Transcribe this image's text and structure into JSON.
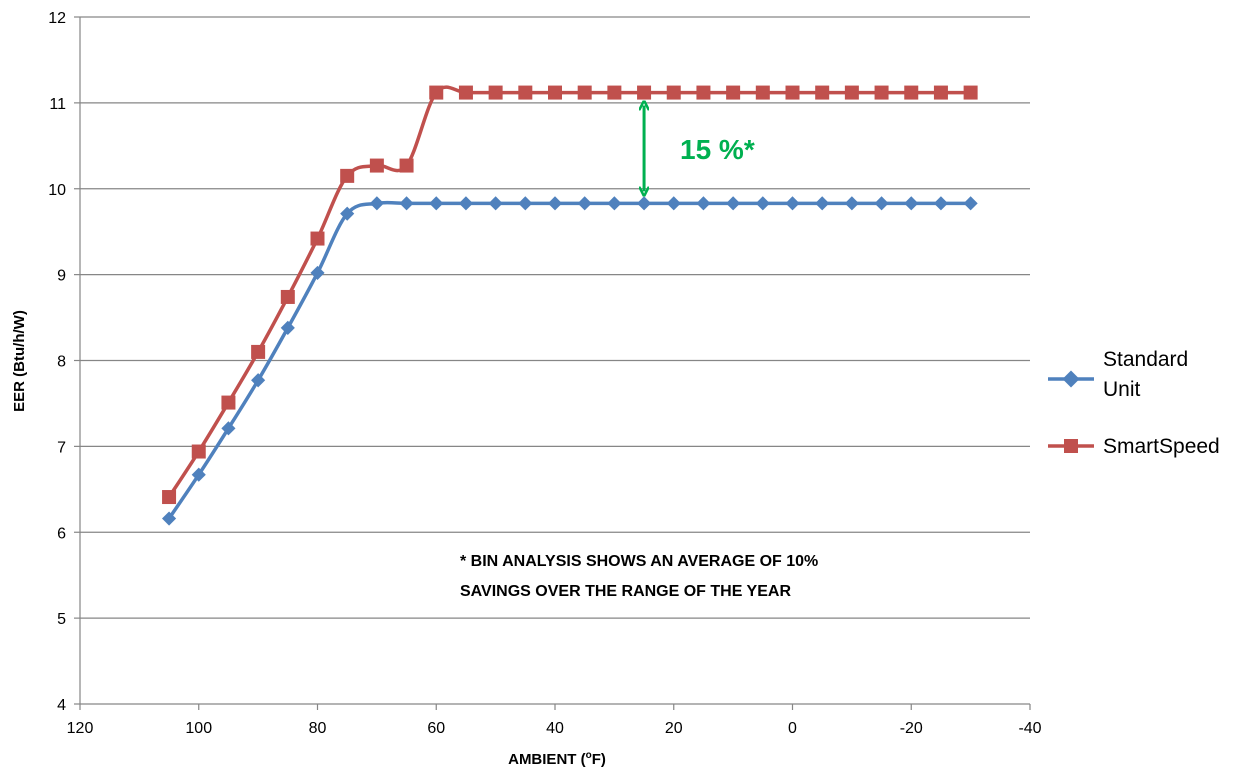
{
  "chart_data": {
    "type": "line",
    "title": "",
    "xlabel": "AMBIENT (ºF)",
    "xlabel_parts": [
      "AMBIENT (",
      "o",
      "F)"
    ],
    "ylabel": "EER (Btu/h/W)",
    "xlim": [
      120,
      -40
    ],
    "ylim": [
      4,
      12
    ],
    "x_ticks": [
      120,
      100,
      80,
      60,
      40,
      20,
      0,
      -20,
      -40
    ],
    "y_ticks": [
      4,
      5,
      6,
      7,
      8,
      9,
      10,
      11,
      12
    ],
    "grid": "horizontal",
    "legend_position": "right",
    "x": [
      105,
      100,
      95,
      90,
      85,
      80,
      75,
      70,
      65,
      60,
      55,
      50,
      45,
      40,
      35,
      30,
      25,
      20,
      15,
      10,
      5,
      0,
      -5,
      -10,
      -15,
      -20,
      -25,
      -30
    ],
    "series": [
      {
        "name": "Standard Unit",
        "legend_lines": [
          "Standard",
          "Unit"
        ],
        "color": "#4f81bd",
        "marker": "diamond",
        "values": [
          6.16,
          6.67,
          7.21,
          7.77,
          8.38,
          9.02,
          9.71,
          9.83,
          9.83,
          9.83,
          9.83,
          9.83,
          9.83,
          9.83,
          9.83,
          9.83,
          9.83,
          9.83,
          9.83,
          9.83,
          9.83,
          9.83,
          9.83,
          9.83,
          9.83,
          9.83,
          9.83,
          9.83
        ]
      },
      {
        "name": "SmartSpeed",
        "legend_lines": [
          "SmartSpeed"
        ],
        "color": "#c0504d",
        "marker": "square",
        "values": [
          6.41,
          6.94,
          7.51,
          8.1,
          8.74,
          9.42,
          10.15,
          10.27,
          10.27,
          11.12,
          11.12,
          11.12,
          11.12,
          11.12,
          11.12,
          11.12,
          11.12,
          11.12,
          11.12,
          11.12,
          11.12,
          11.12,
          11.12,
          11.12,
          11.12,
          11.12,
          11.12,
          11.12
        ]
      }
    ],
    "annotations": {
      "gap_label": "15 %*",
      "gap_arrow": {
        "x": 25,
        "y_from": 9.97,
        "y_to": 10.97,
        "color": "#00b050"
      },
      "note_lines": [
        "* BIN ANALYSIS SHOWS AN AVERAGE OF 10%",
        "SAVINGS OVER THE RANGE OF THE YEAR"
      ]
    }
  }
}
